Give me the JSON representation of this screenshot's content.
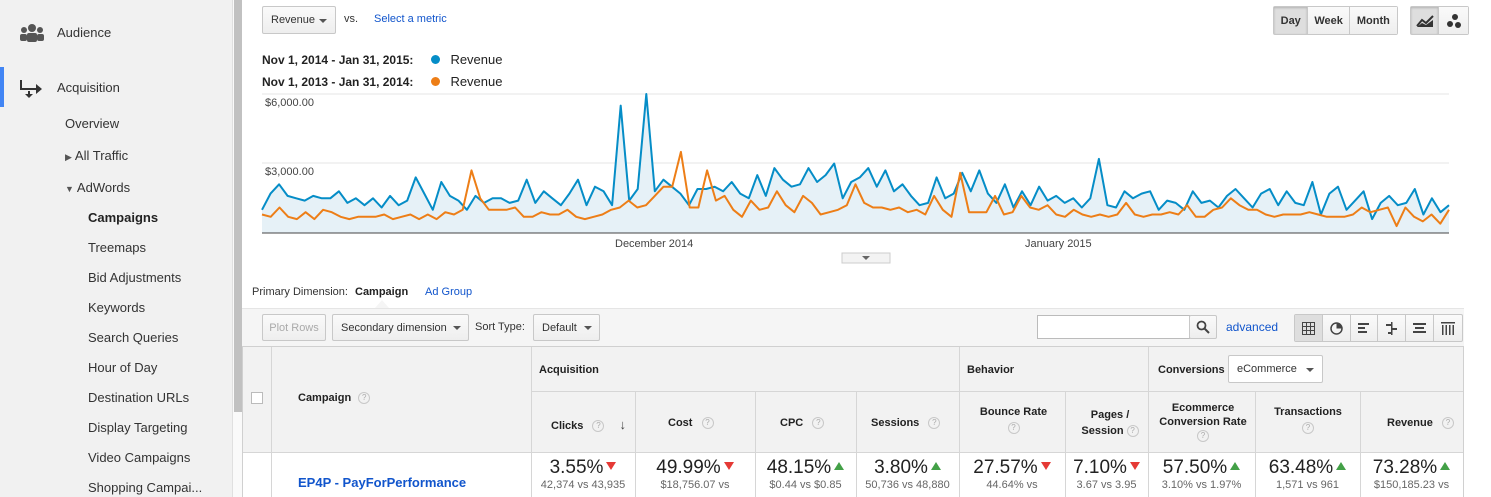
{
  "sidebar": {
    "audience": "Audience",
    "acquisition": "Acquisition",
    "items": [
      "Overview",
      "All Traffic",
      "AdWords",
      "Campaigns",
      "Treemaps",
      "Bid Adjustments",
      "Keywords",
      "Search Queries",
      "Hour of Day",
      "Destination URLs",
      "Display Targeting",
      "Video Campaigns",
      "Shopping Campai..."
    ]
  },
  "header": {
    "metric": "Revenue",
    "vs": "vs.",
    "select_metric": "Select a metric",
    "periods": [
      "Day",
      "Week",
      "Month"
    ],
    "active_period": "Day"
  },
  "legend": [
    {
      "range": "Nov 1, 2014 - Jan 31, 2015:",
      "series": "Revenue",
      "color": "#058dc7"
    },
    {
      "range": "Nov 1, 2013 - Jan 31, 2014:",
      "series": "Revenue",
      "color": "#ed7e17"
    }
  ],
  "chart_data": {
    "type": "line",
    "ytick_labels": [
      "$6,000.00",
      "$3,000.00"
    ],
    "xtick_labels": [
      "December 2014",
      "January 2015"
    ],
    "ylim": [
      0,
      6000
    ],
    "series": [
      {
        "name": "Revenue",
        "color": "#058dc7",
        "fill": true,
        "values": [
          1000,
          1700,
          2100,
          1600,
          1500,
          1400,
          1600,
          1500,
          1500,
          1800,
          1300,
          1500,
          1200,
          1500,
          1100,
          1600,
          1200,
          1400,
          2400,
          1700,
          1000,
          2200,
          1600,
          1400,
          1000,
          1600,
          1300,
          1500,
          1500,
          1300,
          1400,
          2300,
          1300,
          1800,
          1500,
          1200,
          1700,
          2300,
          1200,
          2000,
          1800,
          1200,
          5500,
          1400,
          1900,
          6000,
          1800,
          2300,
          2000,
          1700,
          1200,
          1900,
          1900,
          2000,
          1800,
          2200,
          1700,
          1500,
          2500,
          1600,
          2800,
          2300,
          2000,
          2100,
          2800,
          2200,
          2500,
          3000,
          1500,
          2200,
          2400,
          2800,
          2000,
          2700,
          1800,
          2100,
          1600,
          1200,
          1300,
          2400,
          1500,
          1700,
          2600,
          1800,
          2700,
          1700,
          1300,
          2100,
          1100,
          1800,
          1200,
          2000,
          1400,
          1600,
          1300,
          1500,
          1100,
          1500,
          3200,
          1200,
          1100,
          1800,
          1500,
          1700,
          1800,
          1000,
          1400,
          1300,
          1000,
          1800,
          1300,
          1400,
          1100,
          1600,
          1900,
          1500,
          1100,
          1700,
          1900,
          1200,
          1800,
          1300,
          1200,
          2200,
          800,
          1700,
          2000,
          1000,
          1400,
          1800,
          600,
          1300,
          1600,
          1200,
          1300,
          1900,
          800,
          1500,
          900,
          1200
        ]
      },
      {
        "name": "Revenue",
        "color": "#ed7e17",
        "fill": false,
        "values": [
          800,
          700,
          1100,
          700,
          600,
          900,
          600,
          1000,
          900,
          700,
          600,
          700,
          700,
          700,
          800,
          600,
          700,
          800,
          600,
          800,
          600,
          900,
          800,
          1000,
          2700,
          1500,
          1000,
          1000,
          1000,
          1100,
          700,
          700,
          900,
          800,
          800,
          1000,
          700,
          600,
          700,
          800,
          1000,
          1100,
          1400,
          1100,
          1200,
          1600,
          2000,
          2000,
          3500,
          1100,
          1100,
          2700,
          1400,
          1600,
          1000,
          700,
          1400,
          1000,
          1100,
          1800,
          1200,
          900,
          1600,
          1300,
          800,
          900,
          1000,
          1200,
          2100,
          1300,
          1100,
          1100,
          1000,
          1100,
          900,
          1000,
          800,
          1600,
          1000,
          700,
          2600,
          900,
          900,
          900,
          1600,
          800,
          900,
          1600,
          1100,
          1000,
          1200,
          800,
          700,
          1000,
          800,
          700,
          800,
          700,
          800,
          1300,
          800,
          700,
          800,
          800,
          900,
          800,
          1200,
          700,
          700,
          1000,
          1100,
          1500,
          1200,
          1000,
          1000,
          800,
          700,
          800,
          800,
          800,
          900,
          800,
          700,
          700,
          700,
          800,
          1100,
          900,
          1000,
          1100,
          300,
          1100,
          700,
          500,
          800,
          400,
          1000
        ]
      }
    ]
  },
  "dimension": {
    "label": "Primary Dimension:",
    "campaign": "Campaign",
    "ad_group": "Ad Group"
  },
  "toolbar": {
    "plot_rows": "Plot Rows",
    "secondary": "Secondary dimension",
    "sort_type_label": "Sort Type:",
    "sort_type": "Default",
    "advanced": "advanced",
    "search_placeholder": ""
  },
  "table": {
    "campaign_header": "Campaign",
    "groups": {
      "acquisition": "Acquisition",
      "behavior": "Behavior",
      "conversions": "Conversions",
      "conversions_select": "eCommerce"
    },
    "columns": [
      {
        "label": "Clicks"
      },
      {
        "label": "Cost"
      },
      {
        "label": "CPC"
      },
      {
        "label": "Sessions"
      },
      {
        "label": "Bounce Rate"
      },
      {
        "label": "Pages / Session"
      },
      {
        "label": "Ecommerce Conversion Rate"
      },
      {
        "label": "Transactions"
      },
      {
        "label": "Revenue"
      }
    ],
    "row": {
      "campaign": "EP4P - PayForPerformance",
      "cells": [
        {
          "pct": "3.55%",
          "dir": "down",
          "cmp": "42,374 vs 43,935"
        },
        {
          "pct": "49.99%",
          "dir": "down",
          "cmp": "$18,756.07 vs"
        },
        {
          "pct": "48.15%",
          "dir": "up",
          "cmp": "$0.44 vs $0.85"
        },
        {
          "pct": "3.80%",
          "dir": "up",
          "cmp": "50,736 vs 48,880"
        },
        {
          "pct": "27.57%",
          "dir": "down",
          "cmp": "44.64% vs"
        },
        {
          "pct": "7.10%",
          "dir": "down",
          "cmp": "3.67 vs 3.95"
        },
        {
          "pct": "57.50%",
          "dir": "up",
          "cmp": "3.10% vs 1.97%"
        },
        {
          "pct": "63.48%",
          "dir": "up",
          "cmp": "1,571 vs 961"
        },
        {
          "pct": "73.28%",
          "dir": "up",
          "cmp": "$150,185.23 vs"
        }
      ]
    }
  }
}
